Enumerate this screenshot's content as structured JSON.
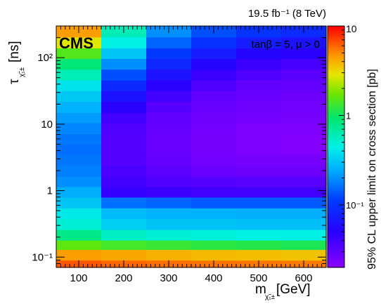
{
  "chart_data": {
    "type": "heatmap",
    "lumi_label": "19.5 fb⁻¹ (8 TeV)",
    "experiment": "CMS",
    "annotation": "tanβ = 5, μ > 0",
    "xlabel": "m",
    "xlabel_sub": "χ̃₁±",
    "xlabel_unit": "[GeV]",
    "ylabel": "τ",
    "ylabel_sub": "χ̃₁±",
    "ylabel_unit": "[ns]",
    "zlabel": "95% CL upper limit on cross section [pb]",
    "x_ticks": [
      {
        "value": 100,
        "label": "100"
      },
      {
        "value": 200,
        "label": "200"
      },
      {
        "value": 300,
        "label": "300"
      },
      {
        "value": 400,
        "label": "400"
      },
      {
        "value": 500,
        "label": "500"
      },
      {
        "value": 600,
        "label": "600"
      }
    ],
    "y_ticks": [
      {
        "value": 0.1,
        "label": "10⁻¹"
      },
      {
        "value": 1,
        "label": "1"
      },
      {
        "value": 10,
        "label": "10"
      },
      {
        "value": 100,
        "label": "10²"
      }
    ],
    "z_ticks": [
      {
        "value": 0.1,
        "label": "10⁻¹"
      },
      {
        "value": 1,
        "label": "1"
      },
      {
        "value": 10,
        "label": "10"
      }
    ],
    "xlim": [
      50,
      650
    ],
    "ylim": [
      0.07,
      300
    ],
    "y_log": true,
    "zlim": [
      0.02,
      10
    ],
    "z_log": true,
    "x_bin_edges": [
      50,
      150,
      250,
      350,
      450,
      550,
      650
    ],
    "y_bin_edges": [
      0.07,
      0.09,
      0.13,
      0.18,
      0.26,
      0.38,
      0.55,
      0.8,
      1.15,
      1.65,
      2.4,
      3.5,
      5,
      7.2,
      10.5,
      15,
      22,
      32,
      46,
      67,
      97,
      140,
      205,
      300
    ],
    "z_values": [
      [
        6.5,
        6.0,
        5.8,
        5.6,
        5.5,
        5.4
      ],
      [
        4.5,
        4.3,
        4.0,
        3.8,
        3.7,
        3.6
      ],
      [
        1.6,
        1.4,
        1.3,
        1.2,
        1.15,
        1.1
      ],
      [
        0.8,
        0.55,
        0.5,
        0.48,
        0.46,
        0.45
      ],
      [
        0.5,
        0.33,
        0.3,
        0.3,
        0.29,
        0.29
      ],
      [
        0.42,
        0.28,
        0.26,
        0.26,
        0.25,
        0.25
      ],
      [
        0.3,
        0.16,
        0.15,
        0.14,
        0.14,
        0.14
      ],
      [
        0.25,
        0.045,
        0.042,
        0.04,
        0.04,
        0.04
      ],
      [
        0.2,
        0.04,
        0.035,
        0.033,
        0.032,
        0.032
      ],
      [
        0.18,
        0.036,
        0.031,
        0.028,
        0.027,
        0.027
      ],
      [
        0.17,
        0.034,
        0.029,
        0.025,
        0.024,
        0.024
      ],
      [
        0.16,
        0.033,
        0.028,
        0.024,
        0.023,
        0.022
      ],
      [
        0.17,
        0.034,
        0.028,
        0.024,
        0.023,
        0.022
      ],
      [
        0.19,
        0.035,
        0.029,
        0.025,
        0.023,
        0.023
      ],
      [
        0.22,
        0.04,
        0.03,
        0.026,
        0.025,
        0.024
      ],
      [
        0.26,
        0.05,
        0.033,
        0.028,
        0.026,
        0.025
      ],
      [
        0.32,
        0.065,
        0.04,
        0.03,
        0.028,
        0.027
      ],
      [
        0.4,
        0.09,
        0.05,
        0.035,
        0.03,
        0.029
      ],
      [
        0.6,
        0.13,
        0.065,
        0.043,
        0.035,
        0.032
      ],
      [
        0.9,
        0.2,
        0.085,
        0.055,
        0.042,
        0.038
      ],
      [
        1.5,
        0.3,
        0.11,
        0.075,
        0.055,
        0.05
      ],
      [
        2.8,
        0.45,
        0.15,
        0.1,
        0.075,
        0.065
      ],
      [
        4.5,
        0.6,
        0.2,
        0.13,
        0.1,
        0.09
      ]
    ],
    "grid": false,
    "colormap": "rainbow-violet-to-red"
  }
}
